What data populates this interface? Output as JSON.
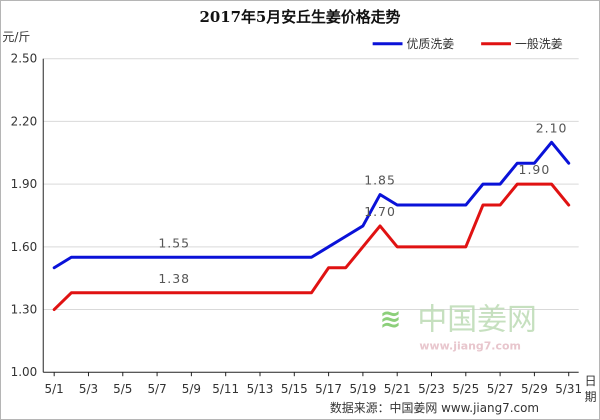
{
  "colors": {
    "premium": "#0a12d8",
    "regular": "#e01212",
    "grid": "#d9d9d9",
    "watermark": "#8ccf7a"
  },
  "chart_data": {
    "type": "line",
    "title": "2017年5月安丘生姜价格走势",
    "ylabel": "元/斤",
    "xlabel": "日期",
    "ylim": [
      1.0,
      2.5
    ],
    "yticks": [
      "1.00",
      "1.30",
      "1.60",
      "1.90",
      "2.20",
      "2.50"
    ],
    "x": [
      1,
      2,
      3,
      4,
      5,
      6,
      7,
      8,
      9,
      10,
      11,
      12,
      13,
      14,
      15,
      16,
      17,
      18,
      19,
      20,
      21,
      22,
      23,
      24,
      25,
      26,
      27,
      28,
      29,
      30,
      31
    ],
    "xticks": [
      "5/1",
      "5/3",
      "5/5",
      "5/7",
      "5/9",
      "5/11",
      "5/13",
      "5/15",
      "5/17",
      "5/19",
      "5/21",
      "5/23",
      "5/25",
      "5/27",
      "5/29",
      "5/31"
    ],
    "grid": true,
    "legend_position": "top-right",
    "series": [
      {
        "name": "优质洗姜",
        "values": [
          1.5,
          1.55,
          1.55,
          1.55,
          1.55,
          1.55,
          1.55,
          1.55,
          1.55,
          1.55,
          1.55,
          1.55,
          1.55,
          1.55,
          1.55,
          1.55,
          1.6,
          1.65,
          1.7,
          1.85,
          1.8,
          1.8,
          1.8,
          1.8,
          1.8,
          1.9,
          1.9,
          2.0,
          2.0,
          2.1,
          2.0
        ]
      },
      {
        "name": "一般洗姜",
        "values": [
          1.3,
          1.38,
          1.38,
          1.38,
          1.38,
          1.38,
          1.38,
          1.38,
          1.38,
          1.38,
          1.38,
          1.38,
          1.38,
          1.38,
          1.38,
          1.38,
          1.5,
          1.5,
          1.6,
          1.7,
          1.6,
          1.6,
          1.6,
          1.6,
          1.6,
          1.8,
          1.8,
          1.9,
          1.9,
          1.9,
          1.8
        ]
      }
    ],
    "annotations": [
      {
        "text": "1.55",
        "series": 0,
        "day": 8
      },
      {
        "text": "1.38",
        "series": 1,
        "day": 8
      },
      {
        "text": "1.85",
        "series": 0,
        "day": 20
      },
      {
        "text": "1.70",
        "series": 1,
        "day": 20
      },
      {
        "text": "2.10",
        "series": 0,
        "day": 30
      },
      {
        "text": "1.90",
        "series": 1,
        "day": 29
      }
    ],
    "source_note": "数据来源：中国姜网 www.jiang7.com"
  },
  "watermark": {
    "brand": "中国姜网",
    "url": "www.jiang7.com"
  }
}
